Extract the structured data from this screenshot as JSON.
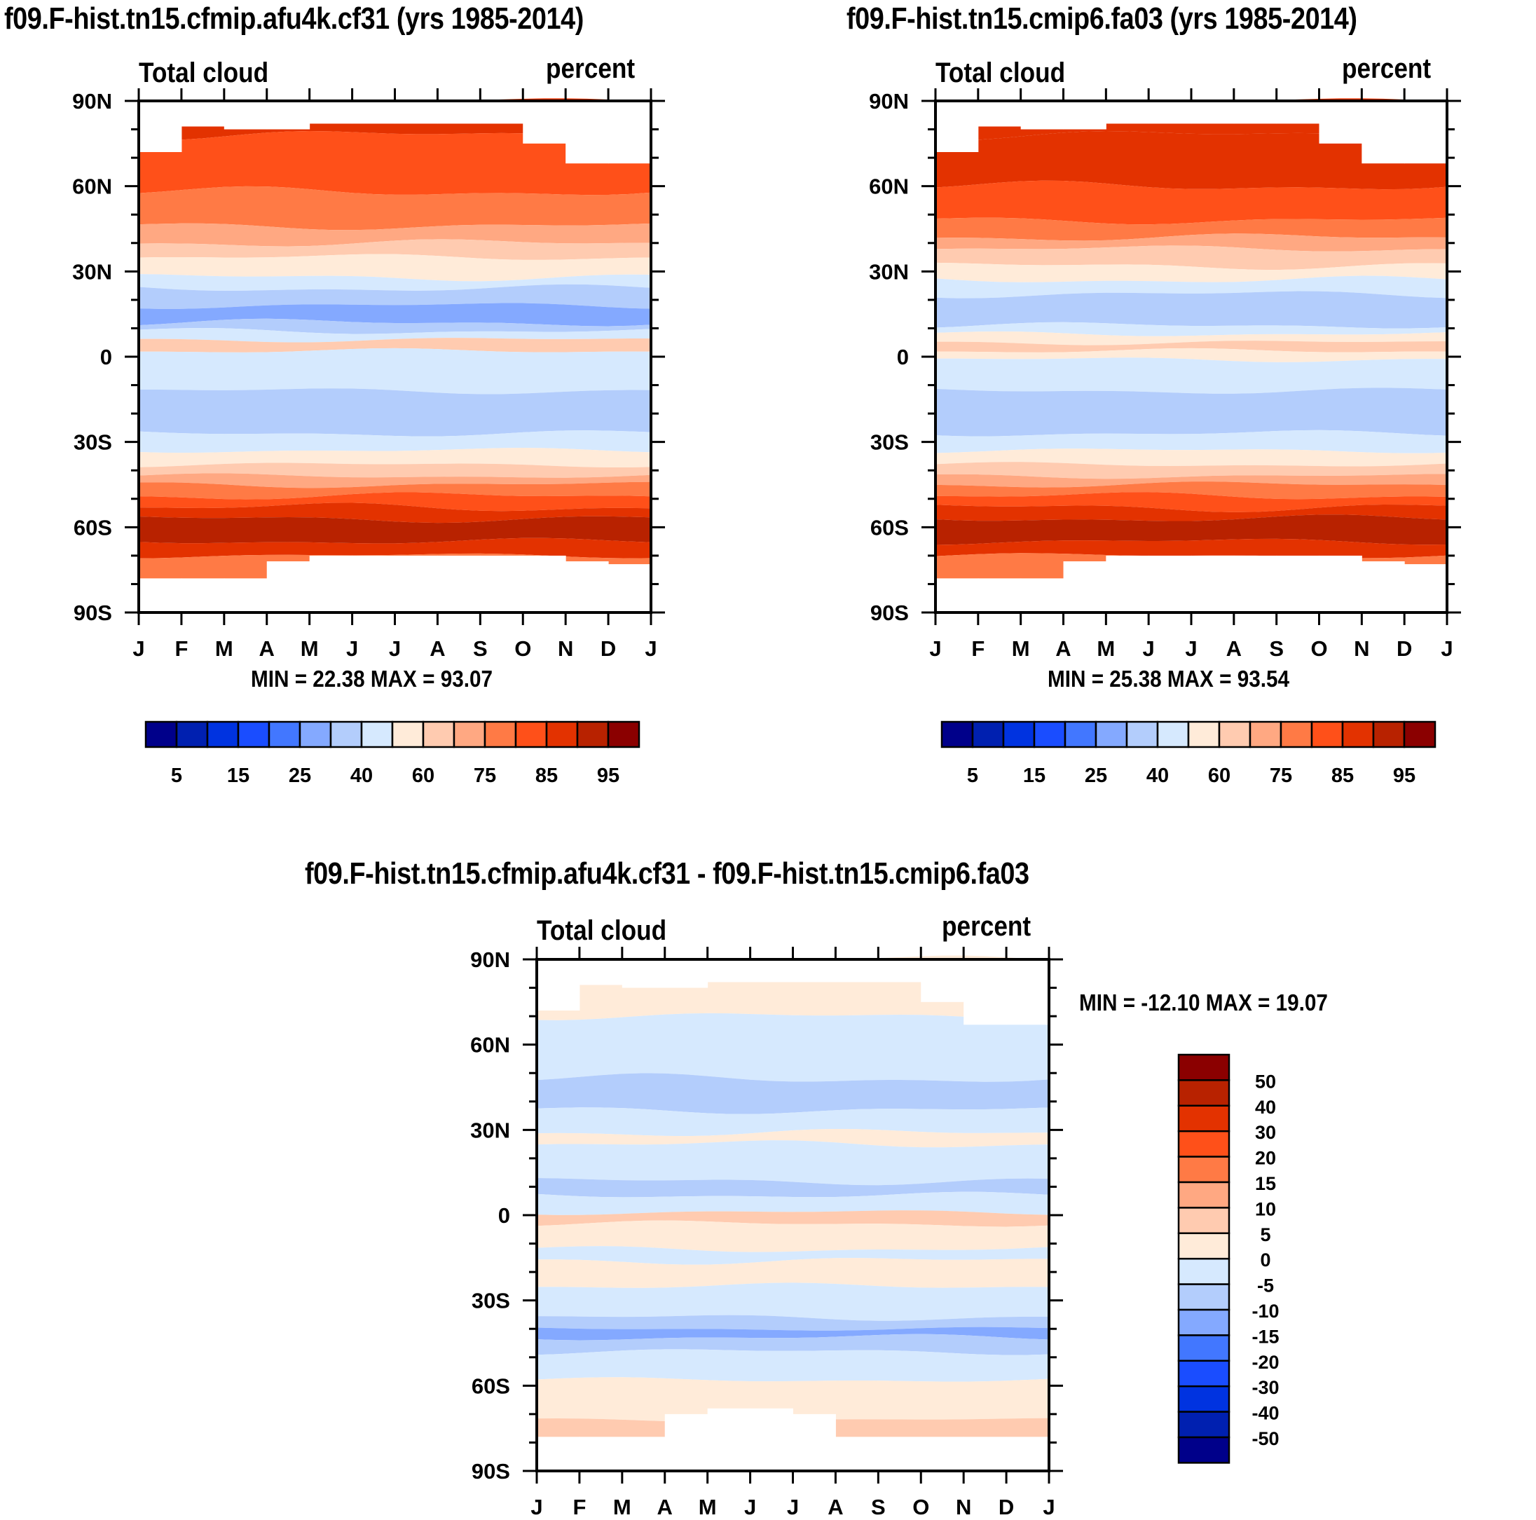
{
  "chart_data": [
    {
      "id": "panel-a",
      "type": "heatmap",
      "title": "f09.F-hist.tn15.cfmip.afu4k.cf31 (yrs 1985-2014)",
      "left_label": "Total cloud",
      "right_label": "percent",
      "xlabel": "",
      "ylabel": "",
      "x_ticks": [
        "J",
        "F",
        "M",
        "A",
        "M",
        "J",
        "J",
        "A",
        "S",
        "O",
        "N",
        "D",
        "J"
      ],
      "y_ticks": [
        "90N",
        "60N",
        "30N",
        "0",
        "30S",
        "60S",
        "90S"
      ],
      "ylim": [
        -90,
        90
      ],
      "min_max_text": "MIN =  22.38 MAX =  93.07",
      "min": 22.38,
      "max": 93.07,
      "colorbar": {
        "orientation": "horizontal",
        "labels": [
          "5",
          "15",
          "25",
          "40",
          "60",
          "75",
          "85",
          "95"
        ],
        "levels": [
          5,
          10,
          15,
          20,
          25,
          30,
          40,
          50,
          60,
          70,
          75,
          80,
          85,
          90,
          95
        ]
      },
      "zonal_profile_desc": {
        "lat": [
          80,
          70,
          60,
          50,
          40,
          30,
          20,
          10,
          0,
          -10,
          -20,
          -30,
          -40,
          -50,
          -60,
          -70
        ],
        "approx_annual_mean_percent": [
          80,
          83,
          82,
          78,
          62,
          50,
          40,
          45,
          45,
          42,
          38,
          47,
          65,
          85,
          90,
          80
        ]
      }
    },
    {
      "id": "panel-b",
      "type": "heatmap",
      "title": "f09.F-hist.tn15.cmip6.fa03 (yrs 1985-2014)",
      "left_label": "Total cloud",
      "right_label": "percent",
      "xlabel": "",
      "ylabel": "",
      "x_ticks": [
        "J",
        "F",
        "M",
        "A",
        "M",
        "J",
        "J",
        "A",
        "S",
        "O",
        "N",
        "D",
        "J"
      ],
      "y_ticks": [
        "90N",
        "60N",
        "30N",
        "0",
        "30S",
        "60S",
        "90S"
      ],
      "ylim": [
        -90,
        90
      ],
      "min_max_text": "MIN =  25.38 MAX =  93.54",
      "min": 25.38,
      "max": 93.54,
      "colorbar": {
        "orientation": "horizontal",
        "labels": [
          "5",
          "15",
          "25",
          "40",
          "60",
          "75",
          "85",
          "95"
        ],
        "levels": [
          5,
          10,
          15,
          20,
          25,
          30,
          40,
          50,
          60,
          70,
          75,
          80,
          85,
          90,
          95
        ]
      },
      "zonal_profile_desc": {
        "lat": [
          80,
          70,
          60,
          50,
          40,
          30,
          20,
          10,
          0,
          -10,
          -20,
          -30,
          -40,
          -50,
          -60,
          -70
        ],
        "approx_annual_mean_percent": [
          83,
          85,
          85,
          82,
          68,
          55,
          42,
          48,
          45,
          42,
          38,
          48,
          66,
          85,
          90,
          80
        ]
      }
    },
    {
      "id": "panel-diff",
      "type": "heatmap",
      "title": "f09.F-hist.tn15.cfmip.afu4k.cf31 - f09.F-hist.tn15.cmip6.fa03",
      "left_label": "Total cloud",
      "right_label": "percent",
      "xlabel": "",
      "ylabel": "",
      "x_ticks": [
        "J",
        "F",
        "M",
        "A",
        "M",
        "J",
        "J",
        "A",
        "S",
        "O",
        "N",
        "D",
        "J"
      ],
      "y_ticks": [
        "90N",
        "60N",
        "30N",
        "0",
        "30S",
        "60S",
        "90S"
      ],
      "ylim": [
        -90,
        90
      ],
      "min_max_text": "MIN = -12.10 MAX =  19.07",
      "min": -12.1,
      "max": 19.07,
      "colorbar": {
        "orientation": "vertical",
        "labels": [
          "50",
          "40",
          "30",
          "20",
          "15",
          "10",
          "5",
          "0",
          "-5",
          "-10",
          "-15",
          "-20",
          "-30",
          "-40",
          "-50"
        ],
        "levels": [
          50,
          40,
          30,
          20,
          15,
          10,
          5,
          0,
          -5,
          -10,
          -15,
          -20,
          -30,
          -40,
          -50
        ]
      },
      "zonal_profile_desc": {
        "lat": [
          75,
          60,
          45,
          35,
          20,
          10,
          0,
          -10,
          -20,
          -30,
          -40,
          -50,
          -60,
          -70
        ],
        "approx_annual_mean_diff": [
          1,
          -2,
          -4,
          -6,
          -1,
          -5,
          3,
          -1,
          2,
          -2,
          -7,
          -3,
          2,
          3
        ]
      }
    }
  ],
  "palette": {
    "sequential": [
      "#00008a",
      "#0020b0",
      "#0033e0",
      "#1a4dff",
      "#4277ff",
      "#84a9ff",
      "#b3cdfc",
      "#d6e9fe",
      "#ffebd9",
      "#ffcbb0",
      "#ffa882",
      "#ff7a45",
      "#ff5019",
      "#e33200",
      "#b82200",
      "#8b0000"
    ],
    "diverging": [
      "#8b0000",
      "#b82200",
      "#e33200",
      "#ff5019",
      "#ff7a45",
      "#ffa882",
      "#ffcbb0",
      "#ffebd9",
      "#d6e9fe",
      "#b3cdfc",
      "#84a9ff",
      "#4277ff",
      "#1a4dff",
      "#0033e0",
      "#0020b0",
      "#00008a"
    ]
  }
}
